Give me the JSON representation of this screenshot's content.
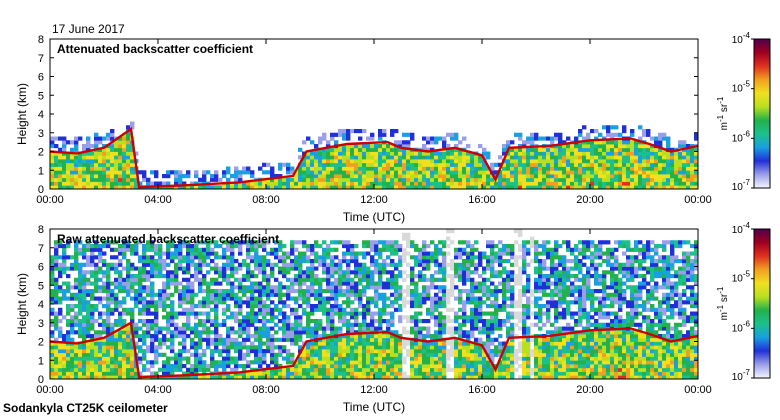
{
  "date_label": "17 June 2017",
  "instrument": "Sodankyla CT25K ceilometer",
  "colors": {
    "trace": "#cc0000",
    "dropout": "#d9d9d9",
    "colormap": [
      "#f5f5ff",
      "#9aa0e8",
      "#2030d8",
      "#1aa0e0",
      "#1cc08a",
      "#22b14c",
      "#b8e020",
      "#f0e020",
      "#f0a020",
      "#e03020",
      "#a00020",
      "#50004a"
    ]
  },
  "chart_data": [
    {
      "type": "heatmap",
      "title": "Attenuated backscatter coefficient",
      "xlabel": "Time (UTC)",
      "ylabel": "Height (km)",
      "x_range_hours": [
        0,
        24
      ],
      "ylim": [
        0,
        8
      ],
      "x_ticks": [
        "00:00",
        "04:00",
        "08:00",
        "12:00",
        "16:00",
        "20:00",
        "00:00"
      ],
      "y_ticks": [
        "0",
        "1",
        "2",
        "3",
        "4",
        "5",
        "6",
        "7",
        "8"
      ],
      "colorbar": {
        "unit_main": "m",
        "unit_exp1": "-1",
        "unit_mid": " sr",
        "unit_exp2": "-1",
        "scale": "log",
        "ticks": [
          {
            "exp": -7,
            "base": "10",
            "sup": "-7"
          },
          {
            "exp": -6,
            "base": "10",
            "sup": "-6"
          },
          {
            "exp": -5,
            "base": "10",
            "sup": "-5"
          },
          {
            "exp": -4,
            "base": "10",
            "sup": "-4"
          }
        ]
      },
      "boundary_layer_km": [
        [
          0,
          2.0
        ],
        [
          1,
          1.9
        ],
        [
          2,
          2.2
        ],
        [
          3,
          3.2
        ],
        [
          3.3,
          0.1
        ],
        [
          5,
          0.2
        ],
        [
          7,
          0.35
        ],
        [
          9,
          0.7
        ],
        [
          9.5,
          2.0
        ],
        [
          11,
          2.4
        ],
        [
          12.5,
          2.5
        ],
        [
          13,
          2.2
        ],
        [
          14,
          2.0
        ],
        [
          15,
          2.2
        ],
        [
          16,
          1.8
        ],
        [
          16.5,
          0.5
        ],
        [
          17,
          2.2
        ],
        [
          18.5,
          2.3
        ],
        [
          20,
          2.6
        ],
        [
          21.5,
          2.7
        ],
        [
          22.2,
          2.4
        ],
        [
          23,
          2.0
        ],
        [
          24,
          2.3
        ]
      ],
      "signal_dropouts_hours": []
    },
    {
      "type": "heatmap",
      "title": "Raw attenuated backscatter coefficient",
      "xlabel": "Time (UTC)",
      "ylabel": "Height (km)",
      "x_range_hours": [
        0,
        24
      ],
      "ylim": [
        0,
        8
      ],
      "x_ticks": [
        "00:00",
        "04:00",
        "08:00",
        "12:00",
        "16:00",
        "20:00",
        "00:00"
      ],
      "y_ticks": [
        "0",
        "1",
        "2",
        "3",
        "4",
        "5",
        "6",
        "7",
        "8"
      ],
      "colorbar": {
        "unit_main": "m",
        "unit_exp1": "-1",
        "unit_mid": " sr",
        "unit_exp2": "-1",
        "scale": "log",
        "ticks": [
          {
            "exp": -7,
            "base": "10",
            "sup": "-7"
          },
          {
            "exp": -6,
            "base": "10",
            "sup": "-6"
          },
          {
            "exp": -5,
            "base": "10",
            "sup": "-5"
          },
          {
            "exp": -4,
            "base": "10",
            "sup": "-4"
          }
        ]
      },
      "boundary_layer_km": [
        [
          0,
          2.0
        ],
        [
          1,
          1.9
        ],
        [
          2,
          2.2
        ],
        [
          3,
          3.0
        ],
        [
          3.3,
          0.1
        ],
        [
          5,
          0.2
        ],
        [
          7,
          0.35
        ],
        [
          9,
          0.7
        ],
        [
          9.5,
          2.0
        ],
        [
          11,
          2.4
        ],
        [
          12.5,
          2.5
        ],
        [
          13,
          2.2
        ],
        [
          14,
          2.0
        ],
        [
          15,
          2.2
        ],
        [
          16,
          1.8
        ],
        [
          16.5,
          0.5
        ],
        [
          17,
          2.2
        ],
        [
          18.5,
          2.3
        ],
        [
          20,
          2.6
        ],
        [
          21.5,
          2.7
        ],
        [
          22.2,
          2.4
        ],
        [
          23,
          2.0
        ],
        [
          24,
          2.3
        ]
      ],
      "signal_dropouts_hours": [
        [
          13.1,
          13.3
        ],
        [
          13.6,
          13.7
        ],
        [
          14.6,
          14.9
        ],
        [
          17.2,
          17.5
        ],
        [
          17.8,
          17.9
        ]
      ]
    }
  ]
}
